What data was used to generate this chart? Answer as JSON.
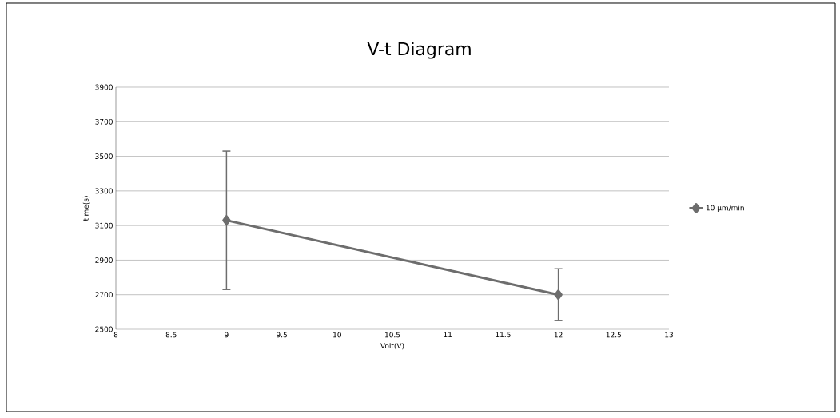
{
  "chart_data": {
    "type": "line",
    "title": "V-t Diagram",
    "xlabel": "Volt(V)",
    "ylabel": "time(s)",
    "x": [
      9,
      12
    ],
    "series": [
      {
        "name": "10 µm/min",
        "color": "#6d6d6d",
        "values": [
          3130,
          2700
        ],
        "errors": [
          400,
          150
        ]
      }
    ],
    "xlim": [
      8,
      13
    ],
    "xticks": [
      8,
      8.5,
      9,
      9.5,
      10,
      10.5,
      11,
      11.5,
      12,
      12.5,
      13
    ],
    "ylim": [
      2500,
      3900
    ],
    "yticks": [
      2500,
      2700,
      2900,
      3100,
      3300,
      3500,
      3700,
      3900
    ],
    "grid": "y",
    "legend": "right",
    "marker": "diamond",
    "line_style": "solid"
  }
}
